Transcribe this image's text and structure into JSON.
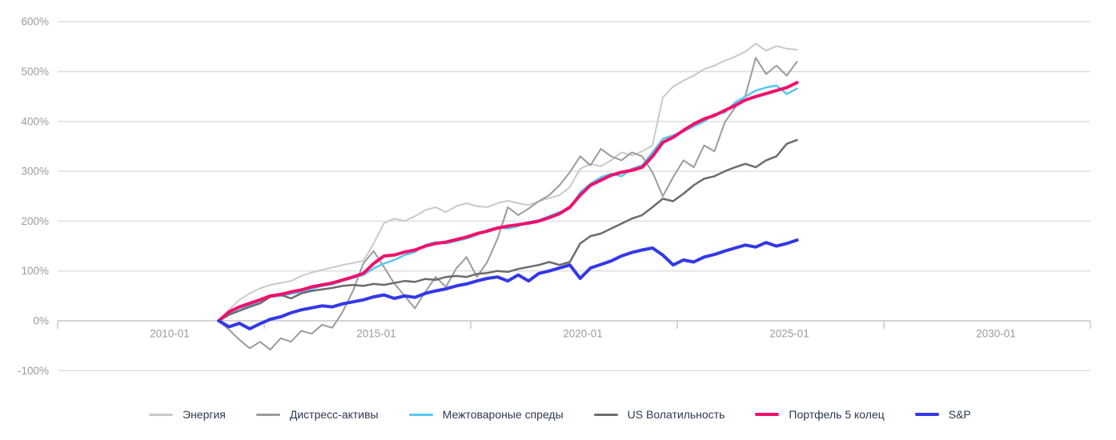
{
  "chart_data": {
    "type": "line",
    "title": "",
    "xlabel": "",
    "ylabel": "",
    "grid": "horizontal",
    "legend_position": "bottom",
    "background_color": "#ffffff",
    "gridline_color": "#dcdcdc",
    "zero_line_color": "#c6c6c6",
    "tick_mark_color": "#c6c6c6",
    "axis_text_color": "#9b9b9b",
    "legend_text_color": "#2b3950",
    "y_axis": {
      "ylim": [
        -100,
        600
      ],
      "tick_values": [
        600,
        500,
        400,
        300,
        200,
        100,
        0,
        -100
      ],
      "tick_labels": [
        "600%",
        "500%",
        "400%",
        "300%",
        "200%",
        "100%",
        "0%",
        "-100%"
      ]
    },
    "x_axis": {
      "domain_years": [
        2007.5,
        2032.5
      ],
      "tick_boundary_years": [
        2007.5,
        2012.5,
        2017.5,
        2022.5,
        2027.5,
        2032.5
      ],
      "tick_labels": [
        "2010-01",
        "2015-01",
        "2020-01",
        "2025-01",
        "2030-01"
      ]
    },
    "x_start_year": 2011.4,
    "x_step_years": 0.25,
    "series": [
      {
        "id": "energy",
        "name": "Энергия",
        "color": "#c9c9c9",
        "line_width": 2,
        "values": [
          0,
          22,
          42,
          55,
          65,
          72,
          76,
          80,
          90,
          97,
          102,
          107,
          112,
          116,
          120,
          155,
          196,
          205,
          200,
          210,
          222,
          228,
          218,
          230,
          236,
          230,
          228,
          236,
          241,
          236,
          232,
          240,
          246,
          252,
          268,
          305,
          315,
          310,
          322,
          338,
          332,
          340,
          352,
          448,
          470,
          482,
          492,
          505,
          512,
          522,
          530,
          540,
          556,
          542,
          551,
          546,
          544
        ]
      },
      {
        "id": "distressed-assets",
        "name": "Дистресс-активы",
        "color": "#9b9b9b",
        "line_width": 2,
        "values": [
          0,
          -18,
          -38,
          -55,
          -42,
          -58,
          -35,
          -42,
          -20,
          -26,
          -8,
          -14,
          18,
          60,
          115,
          140,
          108,
          75,
          50,
          25,
          58,
          88,
          68,
          105,
          128,
          88,
          118,
          165,
          228,
          212,
          225,
          240,
          252,
          272,
          298,
          330,
          312,
          345,
          330,
          322,
          338,
          330,
          298,
          250,
          288,
          322,
          308,
          352,
          340,
          398,
          428,
          452,
          528,
          495,
          512,
          492,
          520
        ]
      },
      {
        "id": "commodity-spreads",
        "name": "Межтовароные спреды",
        "color": "#55c8f2",
        "line_width": 2.5,
        "values": [
          0,
          15,
          25,
          30,
          40,
          48,
          50,
          54,
          58,
          64,
          70,
          73,
          80,
          86,
          92,
          105,
          115,
          122,
          132,
          138,
          152,
          158,
          155,
          160,
          165,
          172,
          182,
          188,
          185,
          190,
          198,
          202,
          210,
          218,
          225,
          258,
          275,
          288,
          295,
          290,
          305,
          312,
          338,
          365,
          372,
          380,
          390,
          400,
          415,
          418,
          438,
          450,
          462,
          468,
          472,
          455,
          466
        ]
      },
      {
        "id": "us-volatility",
        "name": "US Волатильность",
        "color": "#6c6c6c",
        "line_width": 2.5,
        "values": [
          0,
          12,
          20,
          28,
          35,
          48,
          52,
          45,
          55,
          60,
          63,
          66,
          70,
          72,
          70,
          74,
          72,
          76,
          80,
          78,
          84,
          82,
          88,
          90,
          88,
          94,
          96,
          100,
          98,
          104,
          108,
          112,
          118,
          112,
          118,
          155,
          170,
          175,
          185,
          195,
          205,
          212,
          228,
          245,
          240,
          255,
          272,
          285,
          290,
          300,
          308,
          315,
          308,
          322,
          330,
          355,
          363
        ]
      },
      {
        "id": "portfolio-5-rings",
        "name": "Портфель 5 колец",
        "color": "#f0116c",
        "line_width": 4,
        "values": [
          0,
          18,
          28,
          35,
          42,
          50,
          53,
          58,
          62,
          68,
          72,
          76,
          82,
          88,
          95,
          115,
          130,
          132,
          138,
          142,
          150,
          155,
          158,
          163,
          168,
          175,
          180,
          186,
          190,
          193,
          196,
          200,
          207,
          215,
          228,
          252,
          272,
          282,
          292,
          298,
          302,
          308,
          330,
          358,
          368,
          382,
          395,
          405,
          412,
          422,
          432,
          443,
          450,
          456,
          462,
          468,
          478
        ]
      },
      {
        "id": "sp",
        "name": "S&P",
        "color": "#3338e8",
        "line_width": 4,
        "values": [
          0,
          -12,
          -5,
          -16,
          -6,
          3,
          8,
          16,
          22,
          26,
          30,
          28,
          34,
          38,
          42,
          48,
          52,
          45,
          50,
          47,
          55,
          60,
          64,
          70,
          74,
          80,
          85,
          88,
          80,
          92,
          80,
          95,
          100,
          106,
          112,
          85,
          106,
          113,
          120,
          130,
          137,
          142,
          146,
          132,
          112,
          122,
          118,
          128,
          133,
          140,
          146,
          152,
          148,
          157,
          150,
          155,
          162
        ]
      }
    ]
  }
}
